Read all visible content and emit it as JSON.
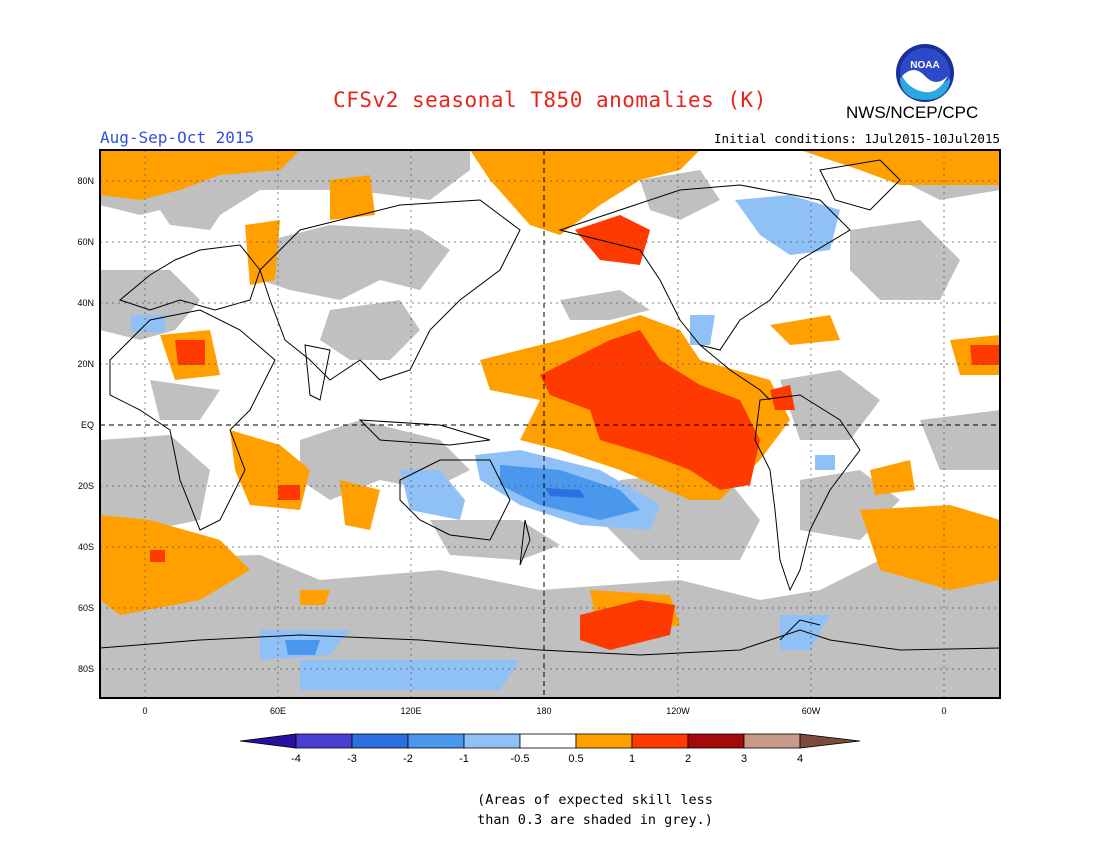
{
  "header": {
    "title": "CFSv2 seasonal T850 anomalies (K)",
    "agency": "NWS/NCEP/CPC",
    "logo_text": "NOAA",
    "season": "Aug-Sep-Oct 2015",
    "initial_conditions": "Initial conditions: 1Jul2015-10Jul2015"
  },
  "map": {
    "lat_labels": [
      "80N",
      "60N",
      "40N",
      "20N",
      "EQ",
      "20S",
      "40S",
      "60S",
      "80S"
    ],
    "lon_labels": [
      "0",
      "60E",
      "120E",
      "180",
      "120W",
      "60W",
      "0"
    ],
    "skill_mask_color": "#c0c0c0",
    "land_outline_color": "#000000"
  },
  "colorbar": {
    "labels": [
      "-4",
      "-3",
      "-2",
      "-1",
      "-0.5",
      "0.5",
      "1",
      "2",
      "3",
      "4"
    ],
    "colors": [
      "#2a0f9e",
      "#4b3fd3",
      "#2c6fe0",
      "#4a97ee",
      "#8fc1f7",
      "#ffffff",
      "#ffa000",
      "#ff3a00",
      "#a30a0a",
      "#c99a8a",
      "#7a4a3a"
    ]
  },
  "note": {
    "line1": "(Areas of expected skill less",
    "line2": "than 0.3 are shaded in grey.)"
  }
}
